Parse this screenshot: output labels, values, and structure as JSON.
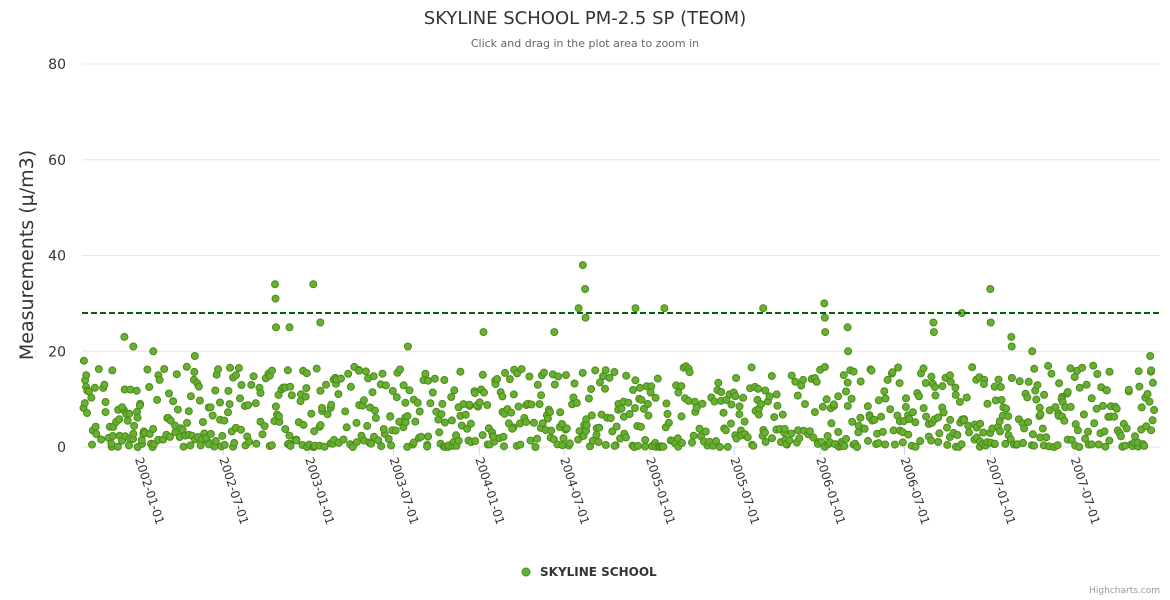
{
  "chart_data": {
    "type": "scatter",
    "title": "SKYLINE SCHOOL PM-2.5 SP (TEOM)",
    "subtitle": "Click and drag in the plot area to zoom in",
    "xlabel": "",
    "ylabel": "Measurements (µ/m3)",
    "ylim": [
      0,
      80
    ],
    "yticks": [
      "0",
      "20",
      "40",
      "60",
      "80"
    ],
    "xlim": [
      "2001-09-01",
      "2007-12-31"
    ],
    "xticks": [
      "2002-01-01",
      "2002-07-01",
      "2003-01-01",
      "2003-07-01",
      "2004-01-01",
      "2004-07-01",
      "2005-01-01",
      "2005-07-01",
      "2006-01-01",
      "2006-07-01",
      "2007-01-01",
      "2007-07-01"
    ],
    "threshold": {
      "value": 28,
      "color": "#006400",
      "style": "dashed"
    },
    "grid": true,
    "legend": "bottom-center",
    "series": [
      {
        "name": "SKYLINE SCHOOL",
        "color": "#66b032",
        "stroke": "#4d8a1a",
        "notable_points": [
          {
            "x": "2001-09-05",
            "y": 18
          },
          {
            "x": "2001-09-10",
            "y": 15
          },
          {
            "x": "2001-11-05",
            "y": 16
          },
          {
            "x": "2001-12-01",
            "y": 23
          },
          {
            "x": "2001-12-20",
            "y": 21
          },
          {
            "x": "2002-02-01",
            "y": 20
          },
          {
            "x": "2002-05-01",
            "y": 19
          },
          {
            "x": "2002-10-20",
            "y": 34
          },
          {
            "x": "2002-10-21",
            "y": 31
          },
          {
            "x": "2002-10-22",
            "y": 25
          },
          {
            "x": "2002-11-20",
            "y": 25
          },
          {
            "x": "2003-01-10",
            "y": 34
          },
          {
            "x": "2003-01-25",
            "y": 26
          },
          {
            "x": "2003-08-01",
            "y": 21
          },
          {
            "x": "2004-01-10",
            "y": 24
          },
          {
            "x": "2004-06-10",
            "y": 24
          },
          {
            "x": "2004-08-01",
            "y": 29
          },
          {
            "x": "2004-08-10",
            "y": 38
          },
          {
            "x": "2004-08-15",
            "y": 33
          },
          {
            "x": "2004-08-16",
            "y": 27
          },
          {
            "x": "2004-12-01",
            "y": 29
          },
          {
            "x": "2005-02-01",
            "y": 29
          },
          {
            "x": "2005-09-01",
            "y": 29
          },
          {
            "x": "2006-01-10",
            "y": 30
          },
          {
            "x": "2006-01-11",
            "y": 27
          },
          {
            "x": "2006-01-12",
            "y": 24
          },
          {
            "x": "2006-03-01",
            "y": 25
          },
          {
            "x": "2006-03-02",
            "y": 20
          },
          {
            "x": "2006-09-01",
            "y": 26
          },
          {
            "x": "2006-09-02",
            "y": 24
          },
          {
            "x": "2006-11-01",
            "y": 28
          },
          {
            "x": "2007-01-01",
            "y": 33
          },
          {
            "x": "2007-01-02",
            "y": 26
          },
          {
            "x": "2007-02-15",
            "y": 23
          },
          {
            "x": "2007-02-16",
            "y": 21
          },
          {
            "x": "2007-04-01",
            "y": 20
          },
          {
            "x": "2007-12-10",
            "y": 19
          },
          {
            "x": "2007-12-12",
            "y": 16
          }
        ],
        "bulk_range": [
          0,
          15
        ],
        "note": "Several hundred additional daily readings lie mostly between 0 and 15 across the full date range."
      }
    ]
  },
  "credit": "Highcharts.com"
}
